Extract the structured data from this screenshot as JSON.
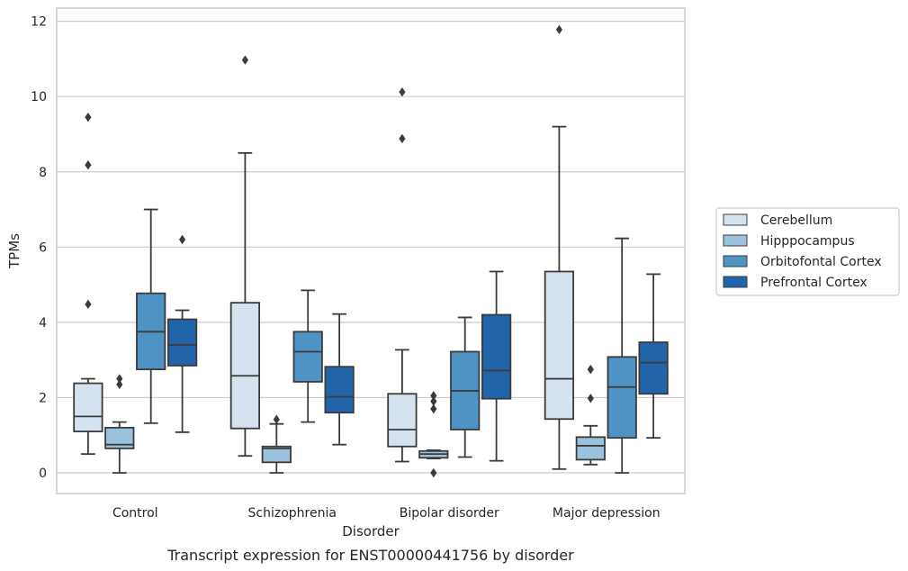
{
  "chart_data": {
    "type": "box",
    "caption": "Transcript expression for ENST00000441756 by disorder",
    "xlabel": "Disorder",
    "ylabel": "TPMs",
    "ylim": [
      -0.55,
      12.35
    ],
    "yticks": [
      0,
      2,
      4,
      6,
      8,
      10,
      12
    ],
    "grid": true,
    "legend_position": "right",
    "categories": [
      "Control",
      "Schizophrenia",
      "Bipolar disorder",
      "Major depression"
    ],
    "series": [
      {
        "name": "Cerebellum",
        "color": "#d5e3f1",
        "boxes": [
          {
            "whisker_low": 0.5,
            "q1": 1.1,
            "median": 1.5,
            "q3": 2.38,
            "whisker_high": 2.5,
            "outliers": [
              4.48,
              8.18,
              9.45
            ]
          },
          {
            "whisker_low": 0.45,
            "q1": 1.18,
            "median": 2.58,
            "q3": 4.52,
            "whisker_high": 8.5,
            "outliers": [
              10.97
            ]
          },
          {
            "whisker_low": 0.3,
            "q1": 0.7,
            "median": 1.15,
            "q3": 2.1,
            "whisker_high": 3.27,
            "outliers": [
              8.88,
              10.12
            ]
          },
          {
            "whisker_low": 0.1,
            "q1": 1.43,
            "median": 2.5,
            "q3": 5.35,
            "whisker_high": 9.2,
            "outliers": [
              11.78
            ]
          }
        ]
      },
      {
        "name": "Hipppocampus",
        "color": "#9ac2dc",
        "boxes": [
          {
            "whisker_low": 0.0,
            "q1": 0.65,
            "median": 0.75,
            "q3": 1.2,
            "whisker_high": 1.35,
            "outliers": [
              2.35,
              2.5
            ]
          },
          {
            "whisker_low": 0.0,
            "q1": 0.28,
            "median": 0.65,
            "q3": 0.7,
            "whisker_high": 1.3,
            "outliers": [
              1.42
            ]
          },
          {
            "whisker_low": 0.38,
            "q1": 0.4,
            "median": 0.5,
            "q3": 0.58,
            "whisker_high": 0.6,
            "outliers": [
              0.0,
              1.7,
              1.9,
              2.05
            ]
          },
          {
            "whisker_low": 0.22,
            "q1": 0.35,
            "median": 0.72,
            "q3": 0.95,
            "whisker_high": 1.25,
            "outliers": [
              1.98,
              2.75
            ]
          }
        ]
      },
      {
        "name": "Orbitofontal Cortex",
        "color": "#4f93c5",
        "boxes": [
          {
            "whisker_low": 1.32,
            "q1": 2.75,
            "median": 3.75,
            "q3": 4.77,
            "whisker_high": 7.0,
            "outliers": []
          },
          {
            "whisker_low": 1.35,
            "q1": 2.42,
            "median": 3.22,
            "q3": 3.75,
            "whisker_high": 4.85,
            "outliers": []
          },
          {
            "whisker_low": 0.42,
            "q1": 1.15,
            "median": 2.18,
            "q3": 3.22,
            "whisker_high": 4.13,
            "outliers": []
          },
          {
            "whisker_low": 0.0,
            "q1": 0.93,
            "median": 2.28,
            "q3": 3.08,
            "whisker_high": 6.23,
            "outliers": []
          }
        ]
      },
      {
        "name": "Prefrontal Cortex",
        "color": "#2264aa",
        "boxes": [
          {
            "whisker_low": 1.08,
            "q1": 2.85,
            "median": 3.4,
            "q3": 4.08,
            "whisker_high": 4.32,
            "outliers": [
              6.2
            ]
          },
          {
            "whisker_low": 0.75,
            "q1": 1.6,
            "median": 2.02,
            "q3": 2.82,
            "whisker_high": 4.22,
            "outliers": []
          },
          {
            "whisker_low": 0.32,
            "q1": 1.97,
            "median": 2.72,
            "q3": 4.2,
            "whisker_high": 5.35,
            "outliers": []
          },
          {
            "whisker_low": 0.93,
            "q1": 2.1,
            "median": 2.93,
            "q3": 3.47,
            "whisker_high": 5.28,
            "outliers": []
          }
        ]
      }
    ]
  }
}
